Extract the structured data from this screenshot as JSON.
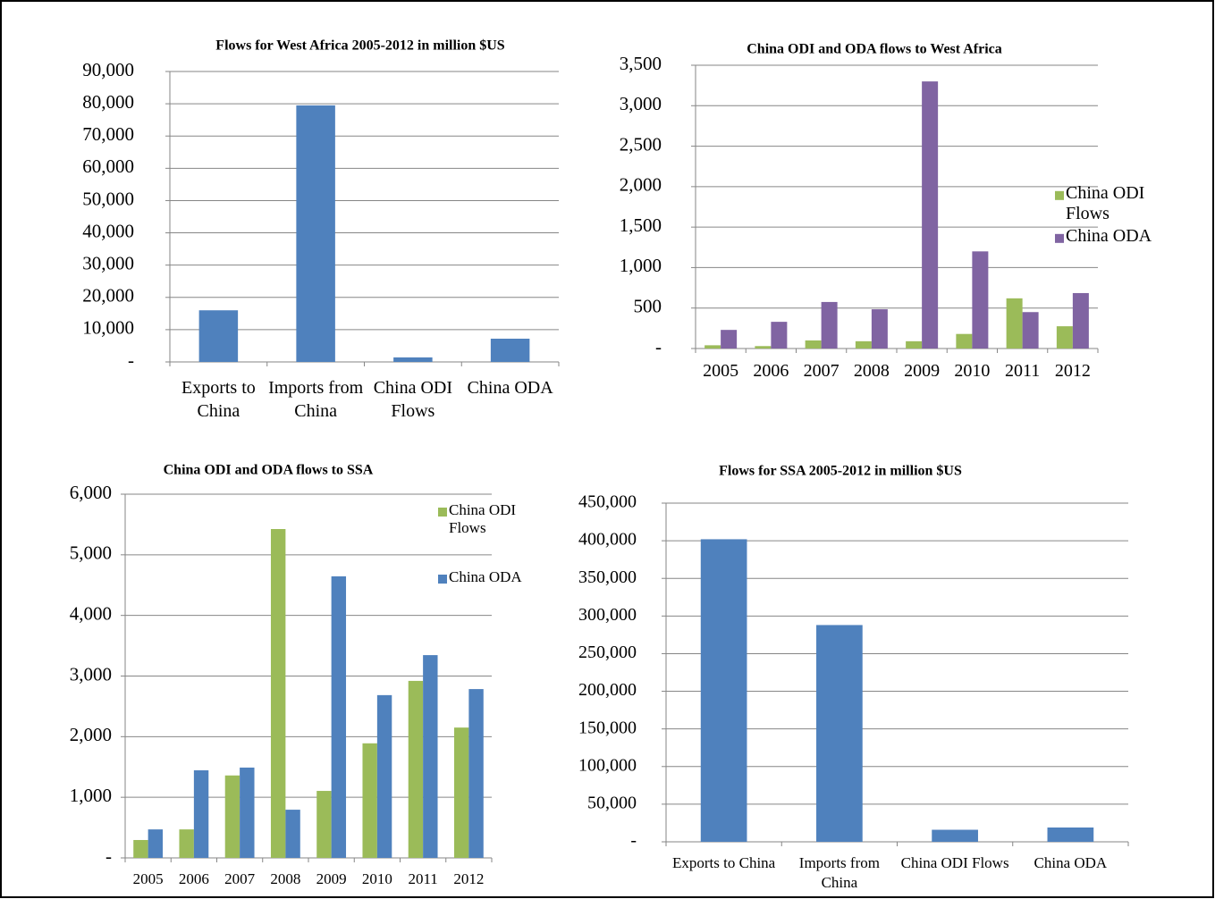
{
  "chart_data": [
    {
      "type": "bar",
      "title": "Flows for West Africa 2005-2012 in million $US",
      "categories": [
        "Exports to China",
        "Imports from China",
        "China ODI Flows",
        "China ODA"
      ],
      "values": [
        16000,
        79500,
        1400,
        7200
      ],
      "color": "#4f81bd",
      "ylim": [
        0,
        90000
      ],
      "yticks": [
        {
          "value": 0,
          "label": "-"
        },
        {
          "value": 10000,
          "label": "10,000"
        },
        {
          "value": 20000,
          "label": "20,000"
        },
        {
          "value": 30000,
          "label": "30,000"
        },
        {
          "value": 40000,
          "label": "40,000"
        },
        {
          "value": 50000,
          "label": "50,000"
        },
        {
          "value": 60000,
          "label": "60,000"
        },
        {
          "value": 70000,
          "label": "70,000"
        },
        {
          "value": 80000,
          "label": "80,000"
        },
        {
          "value": 90000,
          "label": "90,000"
        }
      ],
      "grid": true
    },
    {
      "type": "bar",
      "title": "China ODI and ODA flows to West Africa",
      "categories": [
        "2005",
        "2006",
        "2007",
        "2008",
        "2009",
        "2010",
        "2011",
        "2012"
      ],
      "series": [
        {
          "name": "China ODI Flows",
          "color": "#9bbb59",
          "values": [
            40,
            30,
            100,
            90,
            90,
            180,
            620,
            275
          ]
        },
        {
          "name": "China ODA",
          "color": "#8064a2",
          "values": [
            230,
            330,
            575,
            485,
            3300,
            1200,
            450,
            685
          ]
        }
      ],
      "ylim": [
        0,
        3500
      ],
      "yticks": [
        {
          "value": 0,
          "label": "-"
        },
        500,
        {
          "value": 1000,
          "label": "1,000"
        },
        {
          "value": 1500,
          "label": "1,500"
        },
        {
          "value": 2000,
          "label": "2,000"
        },
        {
          "value": 2500,
          "label": "2,500"
        },
        {
          "value": 3000,
          "label": "3,000"
        },
        {
          "value": 3500,
          "label": "3,500"
        }
      ],
      "grid": true,
      "legend": "right"
    },
    {
      "type": "bar",
      "title": "China ODI and ODA flows to SSA",
      "categories": [
        "2005",
        "2006",
        "2007",
        "2008",
        "2009",
        "2010",
        "2011",
        "2012"
      ],
      "series": [
        {
          "name": "China ODI Flows",
          "color": "#9bbb59",
          "values": [
            295,
            470,
            1360,
            5425,
            1105,
            1890,
            2920,
            2150
          ]
        },
        {
          "name": "China ODA",
          "color": "#4f81bd",
          "values": [
            470,
            1445,
            1490,
            795,
            4645,
            2685,
            3345,
            2785
          ]
        }
      ],
      "ylim": [
        0,
        6000
      ],
      "yticks": [
        {
          "value": 0,
          "label": "-"
        },
        {
          "value": 1000,
          "label": "1,000"
        },
        {
          "value": 2000,
          "label": "2,000"
        },
        {
          "value": 3000,
          "label": "3,000"
        },
        {
          "value": 4000,
          "label": "4,000"
        },
        {
          "value": 5000,
          "label": "5,000"
        },
        {
          "value": 6000,
          "label": "6,000"
        }
      ],
      "grid": true,
      "legend": "upper right"
    },
    {
      "type": "bar",
      "title": "Flows for SSA 2005-2012 in million $US",
      "categories": [
        "Exports to China",
        "Imports from China",
        "China ODI Flows",
        "China ODA"
      ],
      "values": [
        402000,
        288000,
        16000,
        19000
      ],
      "color": "#4f81bd",
      "ylim": [
        0,
        450000
      ],
      "yticks": [
        {
          "value": 0,
          "label": "-"
        },
        {
          "value": 50000,
          "label": "50,000"
        },
        {
          "value": 100000,
          "label": "100,000"
        },
        {
          "value": 150000,
          "label": "150,000"
        },
        {
          "value": 200000,
          "label": "200,000"
        },
        {
          "value": 250000,
          "label": "250,000"
        },
        {
          "value": 300000,
          "label": "300,000"
        },
        {
          "value": 350000,
          "label": "350,000"
        },
        {
          "value": 400000,
          "label": "400,000"
        },
        {
          "value": 450000,
          "label": "450,000"
        }
      ],
      "grid": true
    }
  ]
}
